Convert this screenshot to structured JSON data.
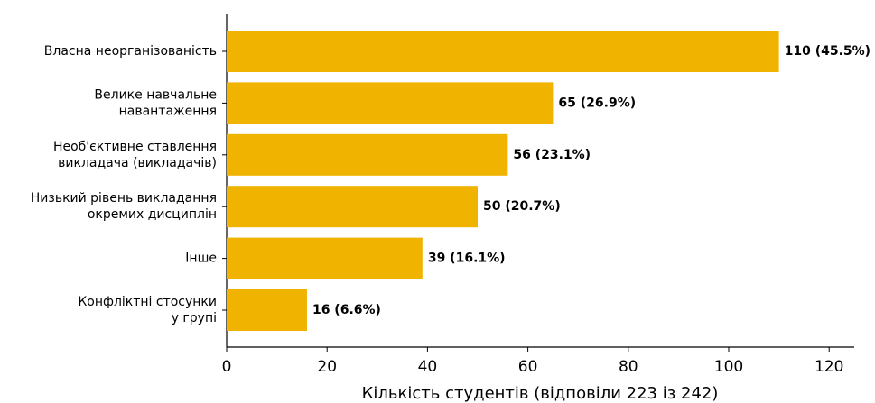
{
  "chart_data": {
    "type": "barh",
    "categories": [
      "Власна неорганізованість",
      "Велике навчальне\nнавантаження",
      "Необ'єктивне ставлення\nвикладача (викладачів)",
      "Низький рівень викладання\nокремих дисциплін",
      "Інше",
      "Конфліктні стосунки\nу групі"
    ],
    "values": [
      110,
      65,
      56,
      50,
      39,
      16
    ],
    "value_labels": [
      "110 (45.5%)",
      "65 (26.9%)",
      "56 (23.1%)",
      "50 (20.7%)",
      "39 (16.1%)",
      "16 (6.6%)"
    ],
    "color": "#f0b400",
    "xlabel": "Кількість студентів (відповіли 223 із 242)",
    "xlim": [
      0,
      125
    ],
    "xticks": [
      0,
      20,
      40,
      60,
      80,
      100,
      120
    ]
  }
}
